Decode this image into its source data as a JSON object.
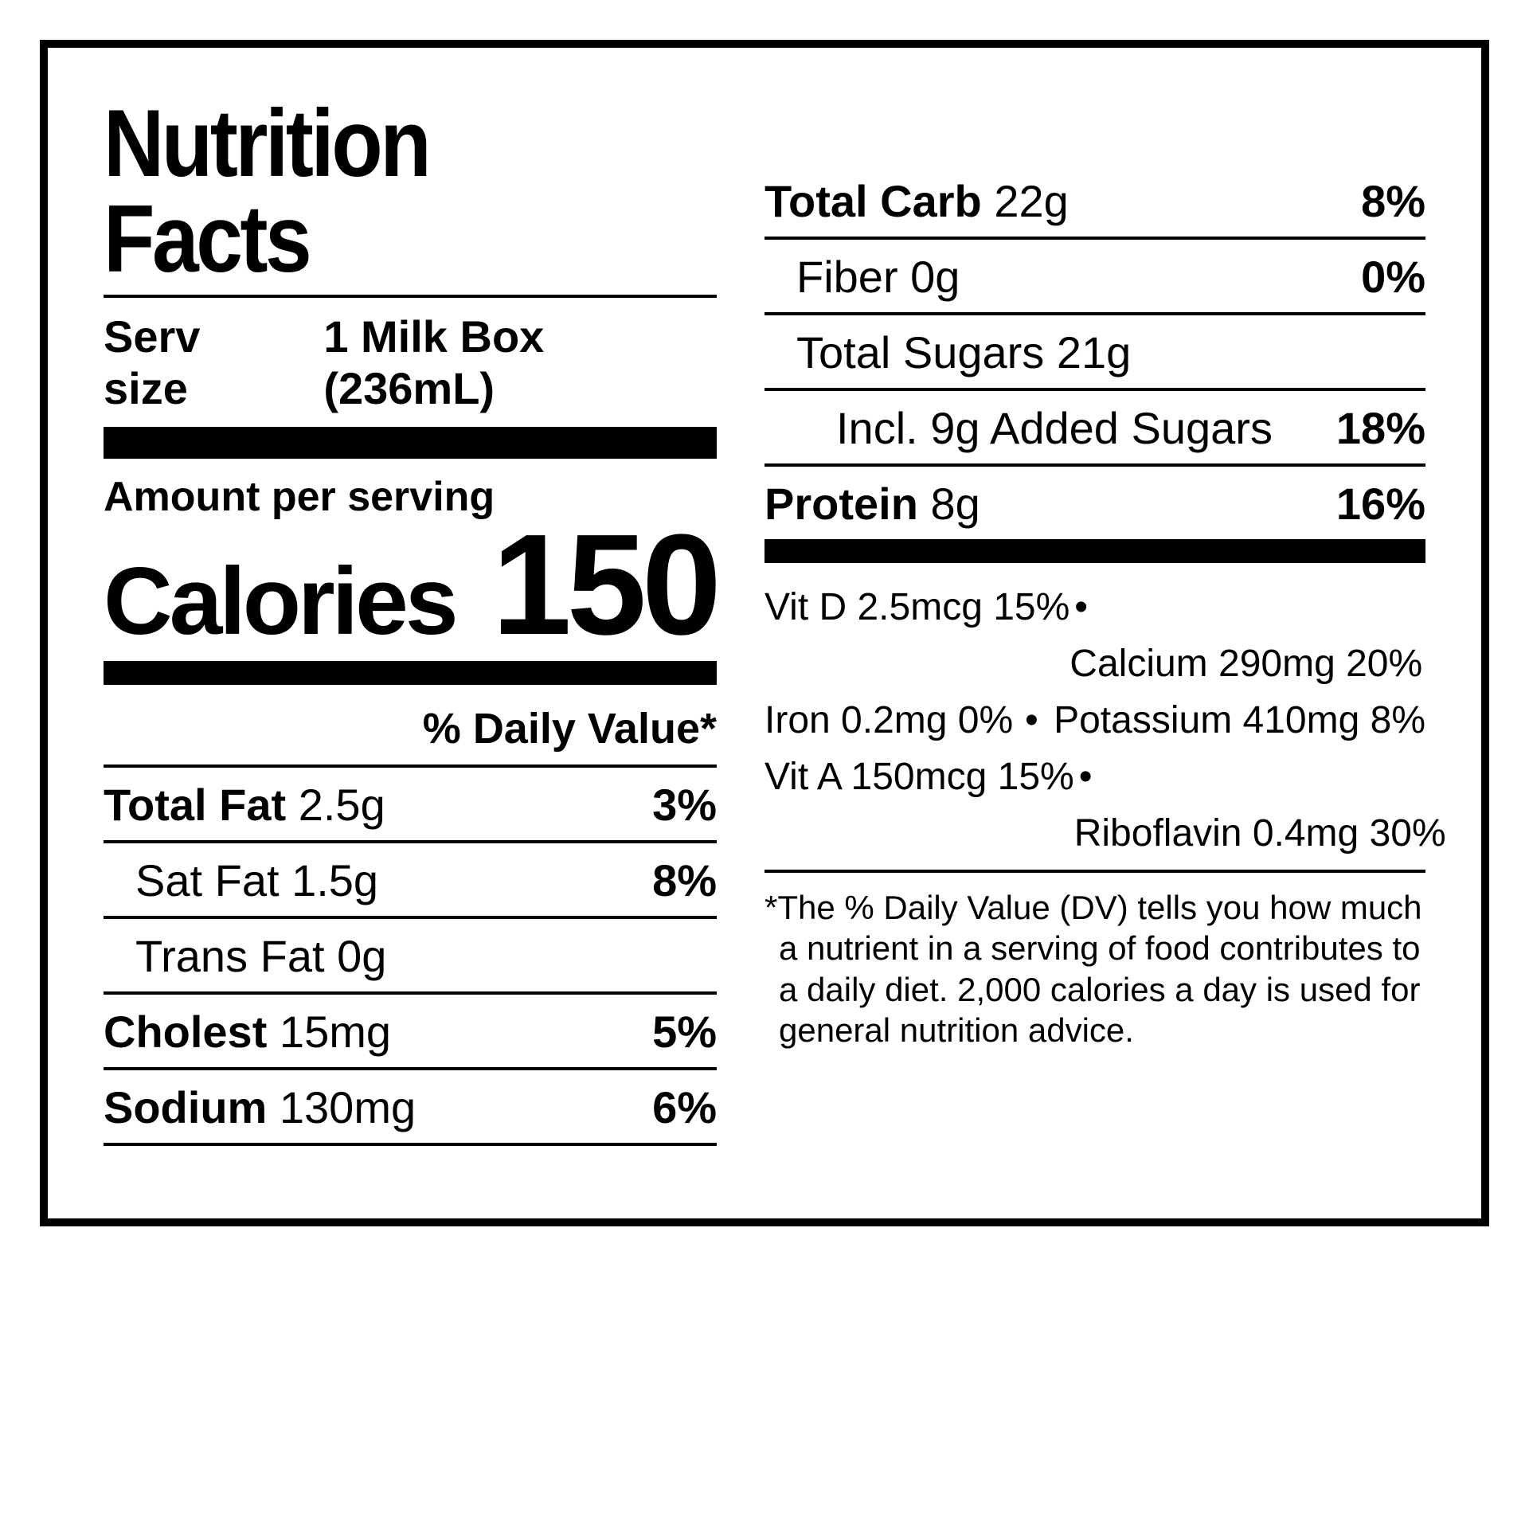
{
  "title": "Nutrition Facts",
  "serving": {
    "label": "Serv size",
    "value": "1 Milk Box (236mL)"
  },
  "amount_per_serving": "Amount per serving",
  "calories": {
    "label": "Calories",
    "value": "150"
  },
  "dv_header": "% Daily Value*",
  "left_rows": [
    {
      "label_bold": "Total Fat",
      "label_rest": " 2.5g",
      "pct": "3%",
      "indent": 0
    },
    {
      "label_bold": "",
      "label_rest": "Sat Fat 1.5g",
      "pct": "8%",
      "indent": 1
    },
    {
      "label_bold": "",
      "label_rest": "Trans Fat 0g",
      "pct": "",
      "indent": 1
    },
    {
      "label_bold": "Cholest",
      "label_rest": " 15mg",
      "pct": "5%",
      "indent": 0
    },
    {
      "label_bold": "Sodium",
      "label_rest": " 130mg",
      "pct": "6%",
      "indent": 0
    }
  ],
  "right_rows": [
    {
      "label_bold": "Total Carb",
      "label_rest": " 22g",
      "pct": "8%",
      "indent": 0
    },
    {
      "label_bold": "",
      "label_rest": "Fiber 0g",
      "pct": "0%",
      "indent": 1
    },
    {
      "label_bold": "",
      "label_rest": "Total Sugars 21g",
      "pct": "",
      "indent": 1
    },
    {
      "label_bold": "",
      "label_rest": "Incl. 9g Added Sugars",
      "pct": "18%",
      "indent": 2
    },
    {
      "label_bold": "Protein",
      "label_rest": " 8g",
      "pct": "16%",
      "indent": 0
    }
  ],
  "vitamins": [
    {
      "a": "Vit D 2.5mcg 15%",
      "b": "Calcium 290mg 20%"
    },
    {
      "a": "Iron 0.2mg 0%",
      "b": "Potassium 410mg 8%"
    },
    {
      "a": "Vit A 150mcg 15%",
      "b": "Riboflavin 0.4mg 30%"
    }
  ],
  "footnote": "*The % Daily Value (DV) tells you how much a nutrient in a serving of food contributes to a daily diet. 2,000 calories a day is used for general nutrition advice.",
  "colors": {
    "fg": "#000000",
    "bg": "#ffffff"
  }
}
